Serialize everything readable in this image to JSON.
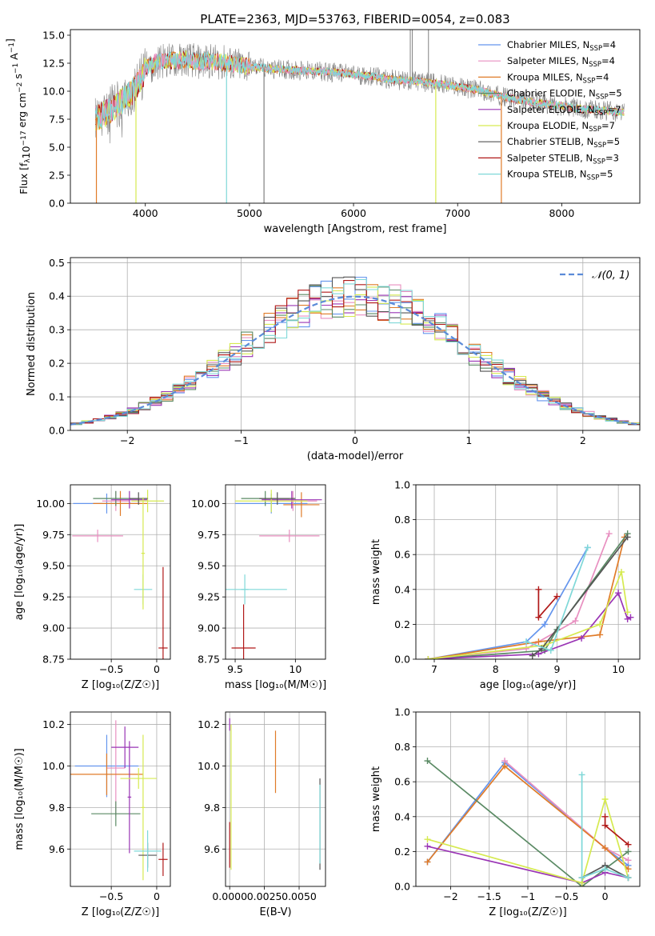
{
  "figure": {
    "title": "PLATE=2363, MJD=53763, FIBERID=0054, z=0.083"
  },
  "colors": {
    "chabrier_miles": "#6495ed",
    "salpeter_miles": "#e88fc0",
    "kroupa_miles": "#e07b28",
    "chabrier_elodie": "#5a8a64",
    "salpeter_elodie": "#9a35b5",
    "kroupa_elodie": "#d6ea50",
    "chabrier_stelib": "#555555",
    "salpeter_stelib": "#b01818",
    "kroupa_stelib": "#7fd8d8",
    "data_spectrum": "#808080",
    "gaussian": "#5b8bd8",
    "grid": "#b0b0b0"
  },
  "chart_data": [
    {
      "id": "spectrum",
      "type": "line",
      "title": "PLATE=2363, MJD=53763, FIBERID=0054, z=0.083",
      "xlabel": "wavelength [Angstrom, rest frame]",
      "ylabel": "Flux [f_λ 10^-17 erg cm^-2 s^-1 A^-1]",
      "xlim": [
        3280,
        8750
      ],
      "ylim": [
        0,
        15.5
      ],
      "xticks": [
        4000,
        5000,
        6000,
        7000,
        8000
      ],
      "yticks": [
        0.0,
        2.5,
        5.0,
        7.5,
        10.0,
        12.5,
        15.0
      ],
      "grid": false,
      "legend_position": "top-right",
      "legend": [
        {
          "label": "Chabrier MILES, N",
          "sub": "SSP",
          "suffix": "=4",
          "color_key": "chabrier_miles"
        },
        {
          "label": "Salpeter MILES, N",
          "sub": "SSP",
          "suffix": "=4",
          "color_key": "salpeter_miles"
        },
        {
          "label": "Kroupa MILES, N",
          "sub": "SSP",
          "suffix": "=4",
          "color_key": "kroupa_miles"
        },
        {
          "label": "Chabrier ELODIE, N",
          "sub": "SSP",
          "suffix": "=5",
          "color_key": "chabrier_elodie"
        },
        {
          "label": "Salpeter ELODIE, N",
          "sub": "SSP",
          "suffix": "=7",
          "color_key": "salpeter_elodie"
        },
        {
          "label": "Kroupa ELODIE, N",
          "sub": "SSP",
          "suffix": "=7",
          "color_key": "kroupa_elodie"
        },
        {
          "label": "Chabrier STELIB, N",
          "sub": "SSP",
          "suffix": "=5",
          "color_key": "chabrier_stelib"
        },
        {
          "label": "Salpeter STELIB, N",
          "sub": "SSP",
          "suffix": "=3",
          "color_key": "salpeter_stelib"
        },
        {
          "label": "Kroupa STELIB, N",
          "sub": "SSP",
          "suffix": "=5",
          "color_key": "kroupa_stelib"
        }
      ],
      "continuum_x": [
        3520,
        3600,
        3700,
        3800,
        3900,
        4000,
        4100,
        4200,
        4300,
        4400,
        4500,
        4600,
        4700,
        4800,
        4900,
        5000,
        5200,
        5400,
        5600,
        5800,
        6000,
        6200,
        6400,
        6600,
        6800,
        7000,
        7200,
        7400,
        7600,
        7800,
        8000,
        8200,
        8400,
        8600
      ],
      "continuum_y": [
        7.6,
        7.9,
        8.6,
        9.3,
        10.2,
        11.9,
        12.6,
        12.8,
        12.7,
        12.9,
        12.6,
        12.7,
        12.6,
        12.5,
        12.3,
        12.2,
        12.0,
        11.9,
        11.8,
        11.7,
        11.5,
        11.3,
        11.0,
        10.9,
        10.7,
        10.4,
        10.1,
        9.6,
        9.2,
        8.9,
        8.7,
        8.4,
        8.3,
        8.1
      ],
      "absorption_spikes": [
        {
          "x": 3530,
          "y": 0.0
        },
        {
          "x": 3910,
          "y": 0.0
        },
        {
          "x": 4780,
          "y": 0.0
        },
        {
          "x": 5140,
          "y": 0.0
        },
        {
          "x": 6790,
          "y": 0.0
        },
        {
          "x": 7420,
          "y": 0.0
        }
      ],
      "emission_spikes": [
        {
          "x": 6545,
          "y": 15.5
        },
        {
          "x": 6565,
          "y": 15.5
        },
        {
          "x": 6720,
          "y": 15.5
        }
      ]
    },
    {
      "id": "residual_distribution",
      "type": "line",
      "xlabel": "(data-model)/error",
      "ylabel": "Normed distribution",
      "xlim": [
        -2.5,
        2.5
      ],
      "ylim": [
        0.0,
        0.515
      ],
      "xticks": [
        -2,
        -1,
        0,
        1,
        2
      ],
      "yticks": [
        0.0,
        0.1,
        0.2,
        0.3,
        0.4,
        0.5
      ],
      "grid": true,
      "legend_position": "top-right",
      "legend": [
        {
          "label": "𝒩(0, 1)",
          "color_key": "gaussian",
          "dashed": true
        }
      ],
      "gaussian": {
        "mean": 0,
        "sigma": 1
      },
      "bin_width": 0.1,
      "histograms": [
        {
          "color_key": "chabrier_miles",
          "seed": 1
        },
        {
          "color_key": "salpeter_miles",
          "seed": 2
        },
        {
          "color_key": "kroupa_miles",
          "seed": 3
        },
        {
          "color_key": "chabrier_elodie",
          "seed": 4
        },
        {
          "color_key": "salpeter_elodie",
          "seed": 5
        },
        {
          "color_key": "kroupa_elodie",
          "seed": 6
        },
        {
          "color_key": "chabrier_stelib",
          "seed": 7
        },
        {
          "color_key": "salpeter_stelib",
          "seed": 8
        },
        {
          "color_key": "kroupa_stelib",
          "seed": 9
        }
      ]
    },
    {
      "id": "age_vs_Z",
      "type": "scatter",
      "xlabel": "Z [log₁₀(Z/Z☉)]",
      "ylabel": "age  [log₁₀(age/yr)]",
      "xlim": [
        -0.95,
        0.15
      ],
      "ylim": [
        8.75,
        10.15
      ],
      "xticks": [
        -0.5,
        0.0
      ],
      "yticks": [
        8.75,
        9.0,
        9.25,
        9.5,
        9.75,
        10.0
      ],
      "grid": true,
      "errorbars": [
        {
          "color_key": "chabrier_miles",
          "x": -0.55,
          "y": 10.0,
          "xerr": 0.37,
          "yerr": 0.08
        },
        {
          "color_key": "salpeter_miles",
          "x": -0.65,
          "y": 9.74,
          "xerr": 0.28,
          "yerr": 0.05
        },
        {
          "color_key": "salpeter_miles",
          "x": -0.45,
          "y": 10.02,
          "xerr": 0.15,
          "yerr": 0.08
        },
        {
          "color_key": "kroupa_miles",
          "x": -0.4,
          "y": 10.0,
          "xerr": 0.3,
          "yerr": 0.1
        },
        {
          "color_key": "chabrier_elodie",
          "x": -0.45,
          "y": 10.04,
          "xerr": 0.25,
          "yerr": 0.06
        },
        {
          "color_key": "salpeter_elodie",
          "x": -0.3,
          "y": 10.03,
          "xerr": 0.2,
          "yerr": 0.07
        },
        {
          "color_key": "kroupa_elodie",
          "x": -0.1,
          "y": 10.02,
          "xerr": 0.18,
          "yerr": 0.09
        },
        {
          "color_key": "chabrier_stelib",
          "x": -0.2,
          "y": 10.04,
          "xerr": 0.1,
          "yerr": 0.05
        },
        {
          "color_key": "kroupa_stelib",
          "x": -0.15,
          "y": 9.31,
          "xerr": 0.1,
          "yerr": 0.12
        },
        {
          "color_key": "kroupa_elodie",
          "x": -0.15,
          "y": 9.6,
          "xerr": 0.02,
          "yerr": 0.45
        },
        {
          "color_key": "salpeter_stelib",
          "x": 0.07,
          "y": 8.84,
          "xerr": 0.05,
          "yerr": 0.65
        }
      ]
    },
    {
      "id": "age_vs_mass",
      "type": "scatter",
      "xlabel": "mass [log₁₀(M/M☉)]",
      "ylabel": "",
      "xlim": [
        9.42,
        10.25
      ],
      "ylim": [
        8.75,
        10.15
      ],
      "xticks": [
        9.5,
        10.0
      ],
      "yticks": [
        8.75,
        9.0,
        9.25,
        9.5,
        9.75,
        10.0
      ],
      "grid": true,
      "errorbars": [
        {
          "color_key": "chabrier_miles",
          "x": 9.8,
          "y": 10.0,
          "xerr": 0.3,
          "yerr": 0.08
        },
        {
          "color_key": "salpeter_miles",
          "x": 9.95,
          "y": 9.74,
          "xerr": 0.25,
          "yerr": 0.05
        },
        {
          "color_key": "salpeter_miles",
          "x": 9.98,
          "y": 10.02,
          "xerr": 0.2,
          "yerr": 0.08
        },
        {
          "color_key": "kroupa_miles",
          "x": 10.05,
          "y": 9.99,
          "xerr": 0.15,
          "yerr": 0.1
        },
        {
          "color_key": "chabrier_elodie",
          "x": 9.75,
          "y": 10.04,
          "xerr": 0.2,
          "yerr": 0.06
        },
        {
          "color_key": "salpeter_elodie",
          "x": 9.97,
          "y": 10.03,
          "xerr": 0.25,
          "yerr": 0.07
        },
        {
          "color_key": "kroupa_elodie",
          "x": 9.8,
          "y": 10.02,
          "xerr": 0.3,
          "yerr": 0.09
        },
        {
          "color_key": "chabrier_stelib",
          "x": 9.85,
          "y": 10.04,
          "xerr": 0.15,
          "yerr": 0.05
        },
        {
          "color_key": "kroupa_stelib",
          "x": 9.58,
          "y": 9.31,
          "xerr": 0.03,
          "yerr": 0.12
        },
        {
          "color_key": "kroupa_stelib",
          "x": 9.58,
          "y": 9.31,
          "xerr": 0.35,
          "yerr": 0.0
        },
        {
          "color_key": "salpeter_stelib",
          "x": 9.57,
          "y": 8.84,
          "xerr": 0.1,
          "yerr": 0.35
        }
      ]
    },
    {
      "id": "mass_weight_vs_age",
      "type": "line",
      "xlabel": "age  [log₁₀(age/yr)]",
      "ylabel": "mass weight",
      "xlim": [
        6.7,
        10.35
      ],
      "ylim": [
        0.0,
        1.0
      ],
      "xticks": [
        7,
        8,
        9,
        10
      ],
      "yticks": [
        0.0,
        0.2,
        0.4,
        0.6,
        0.8,
        1.0
      ],
      "grid": true,
      "series": [
        {
          "color_key": "chabrier_miles",
          "x": [
            6.9,
            8.5,
            8.8,
            9.5
          ],
          "y": [
            0.0,
            0.1,
            0.2,
            0.64
          ]
        },
        {
          "color_key": "salpeter_miles",
          "x": [
            6.9,
            8.5,
            9.3,
            9.85
          ],
          "y": [
            0.0,
            0.06,
            0.22,
            0.72
          ]
        },
        {
          "color_key": "kroupa_miles",
          "x": [
            6.9,
            8.7,
            9.7,
            10.1
          ],
          "y": [
            0.0,
            0.1,
            0.14,
            0.7
          ]
        },
        {
          "color_key": "chabrier_elodie",
          "x": [
            6.9,
            8.8,
            9.0,
            10.15
          ],
          "y": [
            0.0,
            0.05,
            0.17,
            0.72
          ]
        },
        {
          "color_key": "salpeter_elodie",
          "x": [
            6.9,
            8.7,
            9.4,
            10.0,
            10.15,
            10.2
          ],
          "y": [
            0.0,
            0.03,
            0.12,
            0.38,
            0.23,
            0.24
          ]
        },
        {
          "color_key": "kroupa_elodie",
          "x": [
            6.9,
            8.8,
            9.7,
            10.05,
            10.15
          ],
          "y": [
            0.0,
            0.08,
            0.2,
            0.5,
            0.27
          ]
        },
        {
          "color_key": "chabrier_stelib",
          "x": [
            8.6,
            8.75,
            10.15
          ],
          "y": [
            0.02,
            0.06,
            0.7
          ]
        },
        {
          "color_key": "salpeter_stelib",
          "x": [
            8.7,
            8.7,
            9.0
          ],
          "y": [
            0.4,
            0.24,
            0.36
          ]
        },
        {
          "color_key": "kroupa_stelib",
          "x": [
            8.5,
            8.9,
            9.5
          ],
          "y": [
            0.1,
            0.05,
            0.64
          ]
        }
      ]
    },
    {
      "id": "mass_vs_Z",
      "type": "scatter",
      "xlabel": "Z [log₁₀(Z/Z☉)]",
      "ylabel": "mass [log₁₀(M/M☉)]",
      "xlim": [
        -0.95,
        0.15
      ],
      "ylim": [
        9.42,
        10.26
      ],
      "xticks": [
        -0.5,
        0.0
      ],
      "yticks": [
        9.6,
        9.8,
        10.0,
        10.2
      ],
      "grid": true,
      "errorbars": [
        {
          "color_key": "chabrier_miles",
          "x": -0.55,
          "y": 10.0,
          "xerr": 0.35,
          "yerr": 0.15
        },
        {
          "color_key": "salpeter_miles",
          "x": -0.45,
          "y": 9.99,
          "xerr": 0.1,
          "yerr": 0.23
        },
        {
          "color_key": "kroupa_miles",
          "x": -0.55,
          "y": 9.96,
          "xerr": 0.4,
          "yerr": 0.1
        },
        {
          "color_key": "chabrier_elodie",
          "x": -0.45,
          "y": 9.77,
          "xerr": 0.27,
          "yerr": 0.06
        },
        {
          "color_key": "salpeter_elodie",
          "x": -0.35,
          "y": 10.09,
          "xerr": 0.15,
          "yerr": 0.1
        },
        {
          "color_key": "salpeter_elodie",
          "x": -0.3,
          "y": 9.85,
          "xerr": 0.02,
          "yerr": 0.27
        },
        {
          "color_key": "kroupa_elodie",
          "x": -0.2,
          "y": 9.94,
          "xerr": 0.2,
          "yerr": 0.05
        },
        {
          "color_key": "kroupa_elodie",
          "x": -0.15,
          "y": 9.8,
          "xerr": 0.02,
          "yerr": 0.35
        },
        {
          "color_key": "chabrier_stelib",
          "x": -0.1,
          "y": 9.57,
          "xerr": 0.1,
          "yerr": 0.06
        },
        {
          "color_key": "kroupa_stelib",
          "x": -0.1,
          "y": 9.59,
          "xerr": 0.15,
          "yerr": 0.1
        },
        {
          "color_key": "salpeter_stelib",
          "x": 0.07,
          "y": 9.55,
          "xerr": 0.05,
          "yerr": 0.08
        }
      ]
    },
    {
      "id": "mass_vs_ebv",
      "type": "scatter",
      "xlabel": "E(B-V)",
      "ylabel": "",
      "xlim": [
        -0.0003,
        0.0069
      ],
      "ylim": [
        9.42,
        10.26
      ],
      "xticks": [
        0.0,
        0.0025,
        0.005
      ],
      "xticklabels": [
        "0.0000",
        "0.0025",
        "0.0050"
      ],
      "yticks": [
        9.6,
        9.8,
        10.0,
        10.2
      ],
      "grid": true,
      "errorbars": [
        {
          "color_key": "salpeter_elodie",
          "x": 0.0,
          "y": 10.2,
          "xerr": 0.0,
          "yerr": 0.03
        },
        {
          "color_key": "kroupa_elodie",
          "x": 0.0001,
          "y": 9.85,
          "xerr": 0.0,
          "yerr": 0.35
        },
        {
          "color_key": "salpeter_stelib",
          "x": 0.0,
          "y": 9.62,
          "xerr": 0.0,
          "yerr": 0.11
        },
        {
          "color_key": "kroupa_miles",
          "x": 0.0033,
          "y": 10.02,
          "xerr": 0.0,
          "yerr": 0.15
        },
        {
          "color_key": "chabrier_stelib",
          "x": 0.0065,
          "y": 9.72,
          "xerr": 0.0,
          "yerr": 0.22
        },
        {
          "color_key": "kroupa_stelib",
          "x": 0.0065,
          "y": 9.72,
          "xerr": 0.0,
          "yerr": 0.19
        }
      ]
    },
    {
      "id": "mass_weight_vs_Z",
      "type": "line",
      "xlabel": "Z [log₁₀(Z/Z☉)]",
      "ylabel": "mass weight",
      "xlim": [
        -2.45,
        0.45
      ],
      "ylim": [
        0.0,
        1.0
      ],
      "xticks": [
        -2.0,
        -1.5,
        -1.0,
        -0.5,
        0.0
      ],
      "yticks": [
        0.0,
        0.2,
        0.4,
        0.6,
        0.8,
        1.0
      ],
      "grid": true,
      "series": [
        {
          "color_key": "chabrier_miles",
          "x": [
            -2.3,
            -1.3,
            0.0,
            0.3
          ],
          "y": [
            0.14,
            0.71,
            0.22,
            0.12
          ]
        },
        {
          "color_key": "salpeter_miles",
          "x": [
            -1.3,
            0.0,
            0.3
          ],
          "y": [
            0.72,
            0.22,
            0.15
          ]
        },
        {
          "color_key": "kroupa_miles",
          "x": [
            -2.3,
            -1.3,
            0.0,
            0.3
          ],
          "y": [
            0.14,
            0.69,
            0.22,
            0.1
          ]
        },
        {
          "color_key": "chabrier_elodie",
          "x": [
            -2.3,
            -0.3,
            0.3
          ],
          "y": [
            0.72,
            0.0,
            0.2
          ]
        },
        {
          "color_key": "salpeter_elodie",
          "x": [
            -2.3,
            -0.3,
            0.0,
            0.3
          ],
          "y": [
            0.23,
            0.02,
            0.08,
            0.05
          ]
        },
        {
          "color_key": "kroupa_elodie",
          "x": [
            -2.3,
            -0.3,
            0.0,
            0.3
          ],
          "y": [
            0.27,
            0.02,
            0.5,
            0.05
          ]
        },
        {
          "color_key": "chabrier_stelib",
          "x": [
            -0.3,
            0.0,
            0.3
          ],
          "y": [
            0.05,
            0.12,
            0.05
          ]
        },
        {
          "color_key": "salpeter_stelib",
          "x": [
            0.0,
            0.0,
            0.3
          ],
          "y": [
            0.4,
            0.35,
            0.24
          ]
        },
        {
          "color_key": "kroupa_stelib",
          "x": [
            -0.3,
            -0.3,
            0.0,
            0.3
          ],
          "y": [
            0.64,
            0.05,
            0.1,
            0.05
          ]
        }
      ]
    }
  ]
}
